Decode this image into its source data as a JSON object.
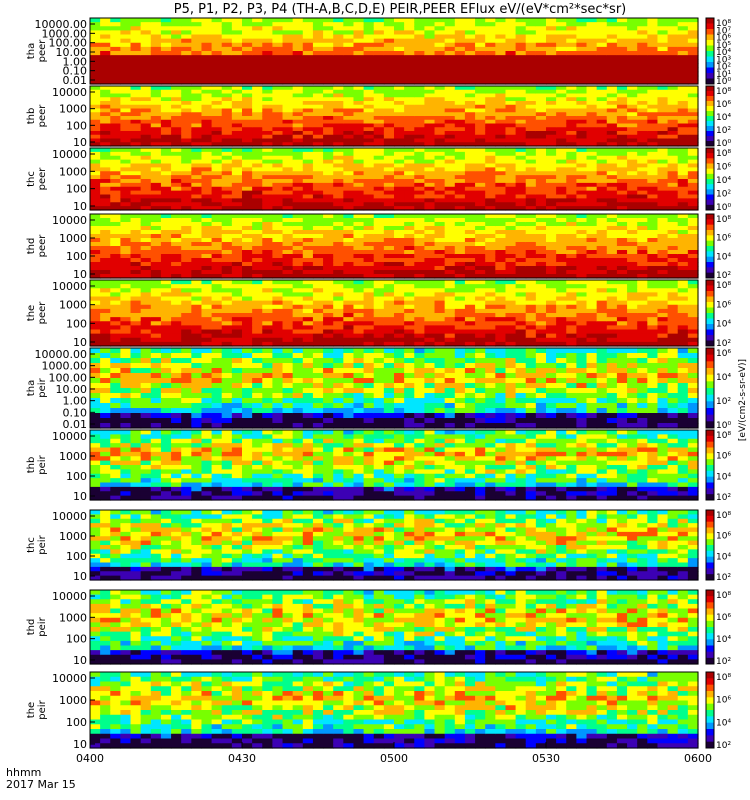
{
  "title": "P5, P1, P2, P3, P4 (TH-A,B,C,D,E) PEIR,PEER EFlux eV/(eV*cm²*sec*sr)",
  "colors": {
    "ramp": [
      "#1a0033",
      "#3c00b4",
      "#0000ff",
      "#0096ff",
      "#00e6ff",
      "#00ff8c",
      "#78ff00",
      "#ffff00",
      "#ffb400",
      "#ff5000",
      "#e10000",
      "#aa0000"
    ]
  },
  "chart_data": {
    "type": "heatmap",
    "x_ticks": [
      "0400",
      "0430",
      "0500",
      "0530",
      "0600"
    ],
    "x_range_minutes": [
      0,
      120
    ],
    "x_corner": [
      "hhmm",
      "2017 Mar 15"
    ],
    "colorbar_unit": "[eV/(cm2-s-sr-eV)]",
    "panels": [
      {
        "probe": "tha",
        "species": "peer",
        "yticks": [
          "10000.00",
          "1000.00",
          "100.00",
          "10.00",
          "1.00",
          "0.10",
          "0.01"
        ],
        "cbar": [
          "10⁸",
          "10⁷",
          "10⁶",
          "10⁵",
          "10⁴",
          "10³",
          "10²",
          "10¹",
          "10⁰"
        ]
      },
      {
        "probe": "thb",
        "species": "peer",
        "yticks": [
          "10000",
          "1000",
          "100",
          "10"
        ],
        "cbar": [
          "10⁸",
          "10⁶",
          "10⁴",
          "10²",
          "10⁰"
        ]
      },
      {
        "probe": "thc",
        "species": "peer",
        "yticks": [
          "10000",
          "1000",
          "100",
          "10"
        ],
        "cbar": [
          "10⁸",
          "10⁶",
          "10⁴",
          "10²",
          "10⁰"
        ]
      },
      {
        "probe": "thd",
        "species": "peer",
        "yticks": [
          "10000",
          "1000",
          "100",
          "10"
        ],
        "cbar": [
          "10⁸",
          "10⁶",
          "10⁴",
          "10²"
        ]
      },
      {
        "probe": "the",
        "species": "peer",
        "yticks": [
          "10000",
          "1000",
          "100",
          "10"
        ],
        "cbar": [
          "10⁸",
          "10⁶",
          "10⁴",
          "10²"
        ]
      },
      {
        "probe": "tha",
        "species": "peir",
        "yticks": [
          "10000.00",
          "1000.00",
          "100.00",
          "10.00",
          "1.00",
          "0.10",
          "0.01"
        ],
        "cbar": [
          "10⁶",
          "10⁴",
          "10²",
          "10⁰"
        ]
      },
      {
        "probe": "thb",
        "species": "peir",
        "yticks": [
          "10000",
          "1000",
          "100",
          "10"
        ],
        "cbar": [
          "10⁸",
          "10⁶",
          "10⁴",
          "10²"
        ]
      },
      {
        "probe": "thc",
        "species": "peir",
        "yticks": [
          "10000",
          "1000",
          "100",
          "10"
        ],
        "cbar": [
          "10⁸",
          "10⁶",
          "10⁴",
          "10²"
        ]
      },
      {
        "probe": "thd",
        "species": "peir",
        "yticks": [
          "10000",
          "1000",
          "100",
          "10"
        ],
        "cbar": [
          "10⁸",
          "10⁶",
          "10⁴",
          "10²"
        ]
      },
      {
        "probe": "the",
        "species": "peir",
        "yticks": [
          "10000",
          "1000",
          "100",
          "10"
        ],
        "cbar": [
          "10⁸",
          "10⁶",
          "10⁴",
          "10²"
        ]
      }
    ]
  }
}
